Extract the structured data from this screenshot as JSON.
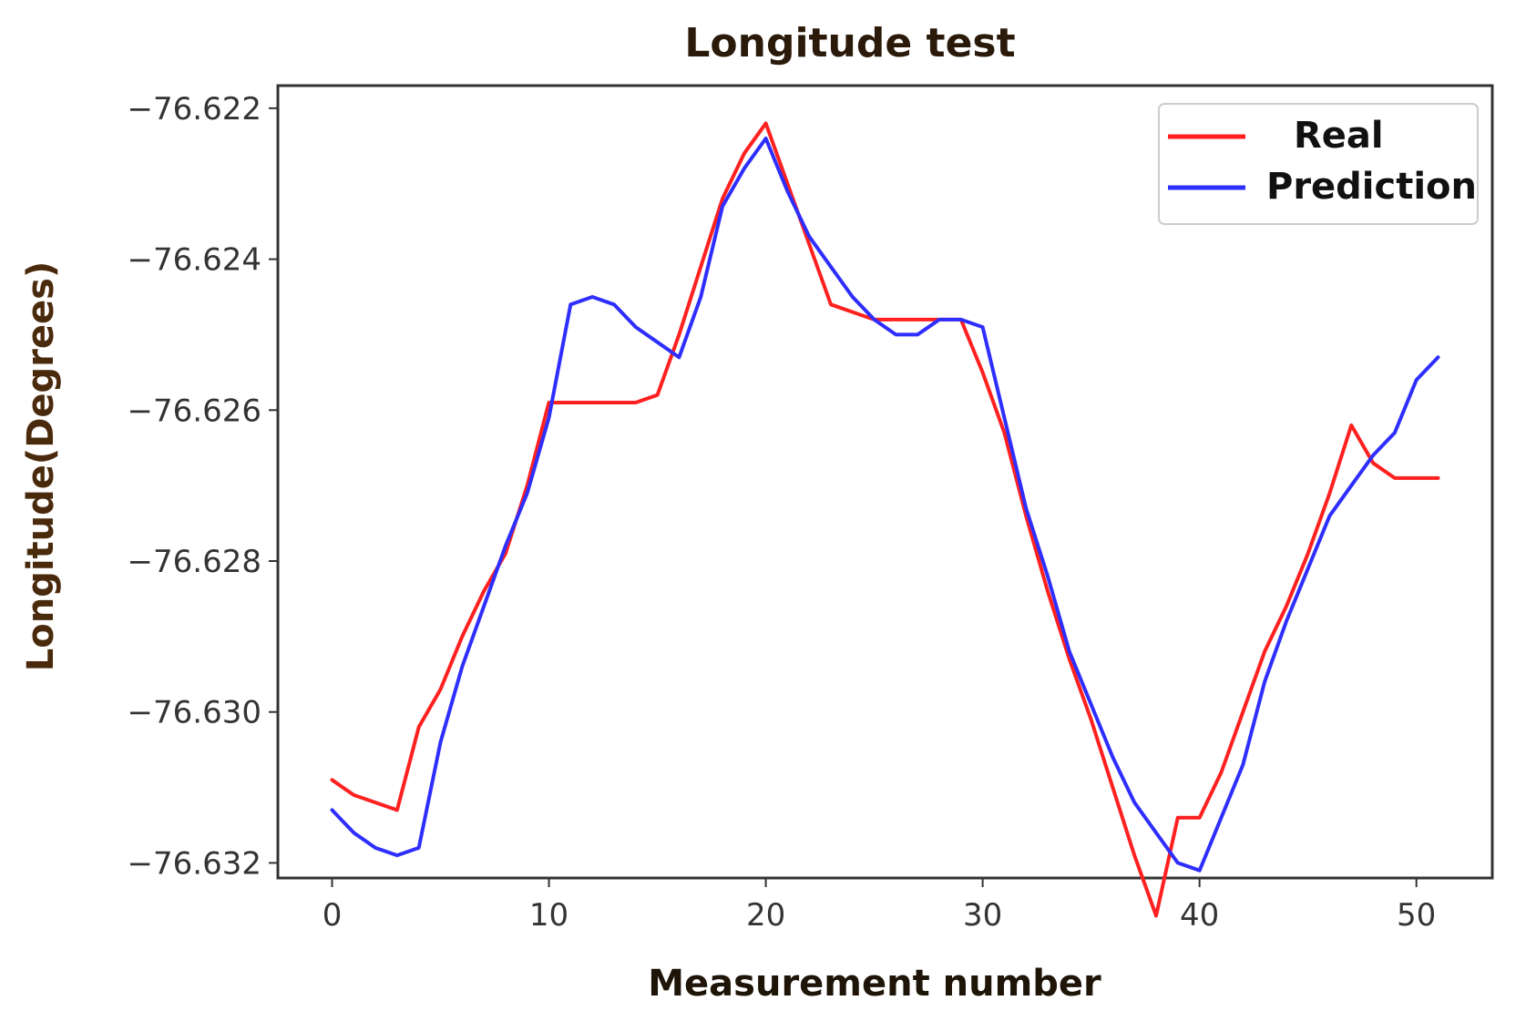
{
  "chart_data": {
    "type": "line",
    "title": "Longitude test",
    "xlabel": "Measurement number",
    "ylabel": "Longitude(Degrees)",
    "xlim": [
      -2.5,
      53.5
    ],
    "ylim": [
      -76.6322,
      -76.6217
    ],
    "x_ticks": [
      0,
      10,
      20,
      30,
      40,
      50
    ],
    "x_tick_labels": [
      "0",
      "10",
      "20",
      "30",
      "40",
      "50"
    ],
    "y_ticks": [
      -76.622,
      -76.624,
      -76.626,
      -76.628,
      -76.63,
      -76.632
    ],
    "y_tick_labels": [
      "−76.622",
      "−76.624",
      "−76.626",
      "−76.628",
      "−76.630",
      "−76.632"
    ],
    "grid": false,
    "legend_position": "top-right",
    "x": [
      0,
      1,
      2,
      3,
      4,
      5,
      6,
      7,
      8,
      9,
      10,
      11,
      12,
      13,
      14,
      15,
      16,
      17,
      18,
      19,
      20,
      21,
      22,
      23,
      24,
      25,
      26,
      27,
      28,
      29,
      30,
      31,
      32,
      33,
      34,
      35,
      36,
      37,
      38,
      39,
      40,
      41,
      42,
      43,
      44,
      45,
      46,
      47,
      48,
      49,
      50,
      51
    ],
    "series": [
      {
        "name": "Real",
        "color": "#ff2020",
        "values": [
          -76.6309,
          -76.6311,
          -76.6312,
          -76.6313,
          -76.6302,
          -76.6297,
          -76.629,
          -76.6284,
          -76.6279,
          -76.627,
          -76.6259,
          -76.6259,
          -76.6259,
          -76.6259,
          -76.6259,
          -76.6258,
          -76.625,
          -76.6241,
          -76.6232,
          -76.6226,
          -76.6222,
          -76.623,
          -76.6238,
          -76.6246,
          -76.6247,
          -76.6248,
          -76.6248,
          -76.6248,
          -76.6248,
          -76.6248,
          -76.6255,
          -76.6263,
          -76.6274,
          -76.6284,
          -76.6293,
          -76.6301,
          -76.631,
          -76.6319,
          -76.6327,
          -76.6314,
          -76.6314,
          -76.6308,
          -76.63,
          -76.6292,
          -76.6286,
          -76.6279,
          -76.6271,
          -76.6262,
          -76.6267,
          -76.6269,
          -76.6269,
          -76.6269
        ]
      },
      {
        "name": "Prediction",
        "color": "#2e2eff",
        "values": [
          -76.6313,
          -76.6316,
          -76.6318,
          -76.6319,
          -76.6318,
          -76.6304,
          -76.6294,
          -76.6286,
          -76.6278,
          -76.6271,
          -76.6261,
          -76.6246,
          -76.6245,
          -76.6246,
          -76.6249,
          -76.6251,
          -76.6253,
          -76.6245,
          -76.6233,
          -76.6228,
          -76.6224,
          -76.6231,
          -76.6237,
          -76.6241,
          -76.6245,
          -76.6248,
          -76.625,
          -76.625,
          -76.6248,
          -76.6248,
          -76.6249,
          -76.6261,
          -76.6273,
          -76.6282,
          -76.6292,
          -76.6299,
          -76.6306,
          -76.6312,
          -76.6316,
          -76.632,
          -76.6321,
          -76.6314,
          -76.6307,
          -76.6296,
          -76.6288,
          -76.6281,
          -76.6274,
          -76.627,
          -76.6266,
          -76.6263,
          -76.6256,
          -76.6253
        ]
      }
    ]
  }
}
